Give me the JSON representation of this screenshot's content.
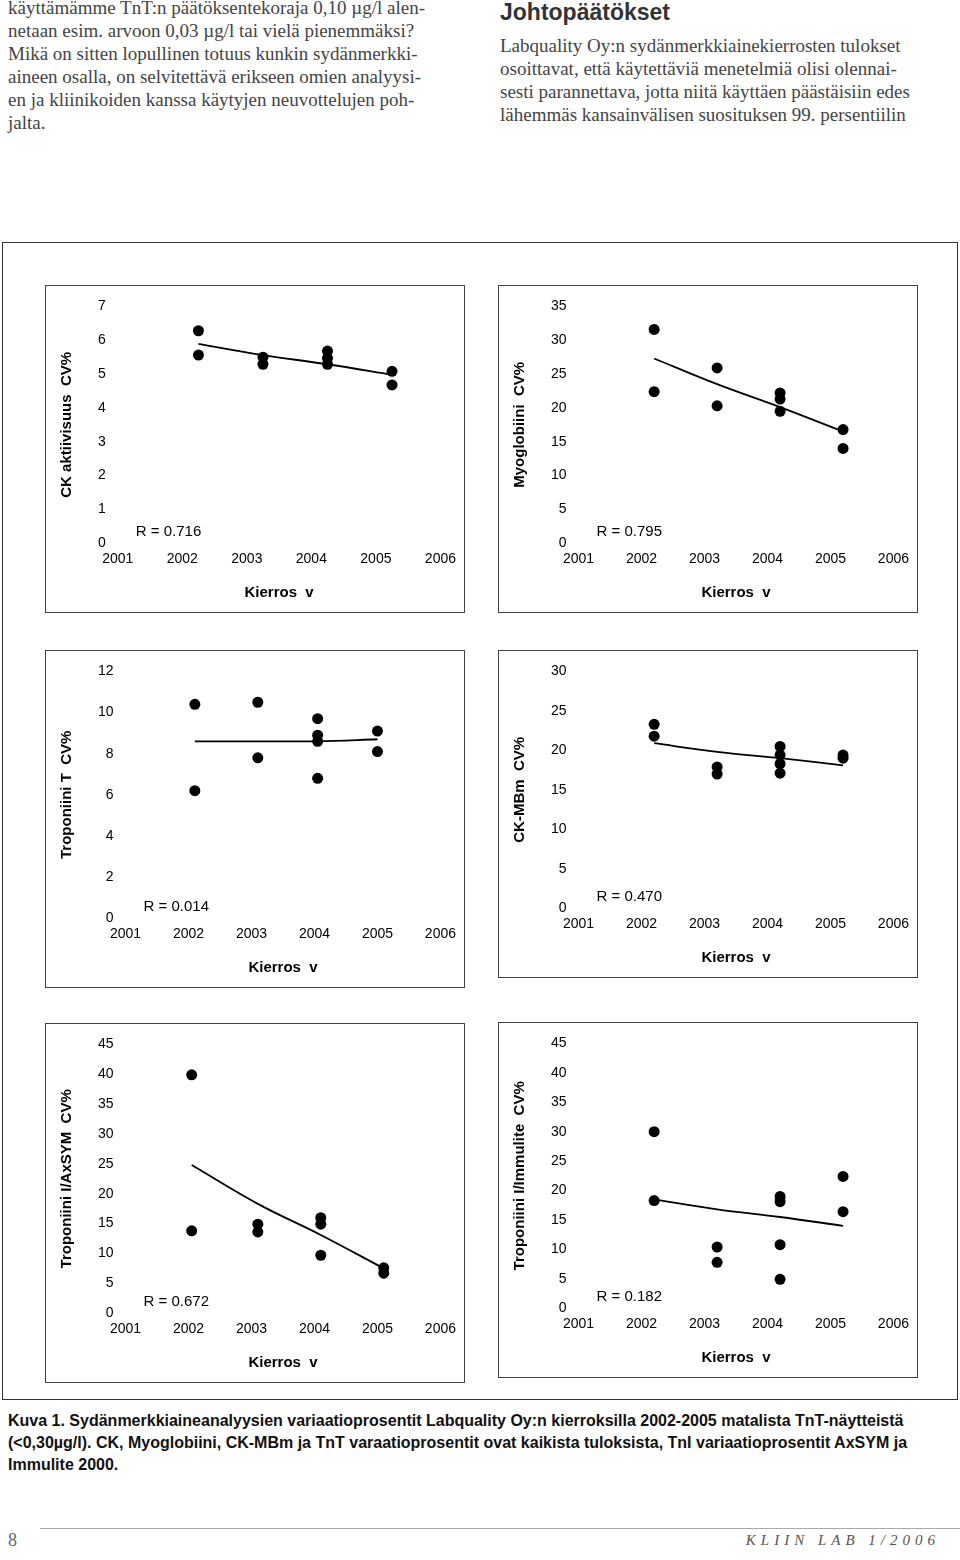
{
  "document": {
    "left_column": [
      "käyttämämme TnT:n päätöksentekoraja 0,10 µg/l alen-",
      "netaan esim. arvoon 0,03 µg/l tai vielä pienemmäksi?",
      "Mikä on sitten lopullinen totuus kunkin sydänmerkki-",
      "aineen osalla, on selvitettävä erikseen omien analyysi-",
      "en ja kliinikoiden kanssa käytyjen neuvottelujen poh-",
      "jalta."
    ],
    "right_column": {
      "heading": "Johtopäätökset",
      "lines": [
        "Labquality Oy:n sydänmerkkiainekierrosten tulokset",
        "osoittavat, että käytettäviä menetelmiä olisi olennai-",
        "sesti parannettava, jotta niitä käyttäen päästäisiin edes",
        "lähemmäs kansainvälisen suosituksen 99. persentiilin"
      ]
    },
    "caption": "Kuva 1. Sydänmerkkiaineanalyysien variaatioprosentit Labquality Oy:n kierroksilla 2002-2005 matalista TnT-näytteistä (<0,30µg/l). CK, Myoglobiini, CK-MBm ja TnT varaatioprosentit ovat kaikista tuloksista, TnI variaatioprosentit AxSYM ja Immulite 2000.",
    "page_number": "8",
    "journal": "KLIIN LAB 1/2006"
  },
  "chart_data": [
    {
      "type": "scatter",
      "y_label": "CK aktiivisuus  CV%",
      "x_label": "Kierros  v",
      "annotation": "R = 0.716",
      "xlim": [
        2001,
        2006
      ],
      "xticks": [
        2001,
        2002,
        2003,
        2004,
        2005,
        2006
      ],
      "ylim": [
        0,
        7
      ],
      "yticks": [
        0,
        1,
        2,
        3,
        4,
        5,
        6,
        7
      ],
      "grid": false,
      "series": [
        {
          "type": "scatter",
          "color": "#000000",
          "marker": "circle",
          "x": [
            2002.25,
            2002.25,
            2003.25,
            2003.25,
            2004.25,
            2004.25,
            2004.25,
            2005.25,
            2005.25
          ],
          "values": [
            6.28,
            5.56,
            5.5,
            5.29,
            5.68,
            5.47,
            5.29,
            5.08,
            4.68
          ]
        },
        {
          "type": "line",
          "color": "#000000",
          "marker": "none",
          "line_style": "solid",
          "x": [
            2002.25,
            2003.25,
            2004.25,
            2005.25
          ],
          "values": [
            5.89,
            5.56,
            5.29,
            4.98
          ]
        }
      ]
    },
    {
      "type": "scatter",
      "y_label": "Myoglobiini  CV%",
      "x_label": "Kierros  v",
      "annotation": "R = 0.795",
      "xlim": [
        2001,
        2006
      ],
      "xticks": [
        2001,
        2002,
        2003,
        2004,
        2005,
        2006
      ],
      "ylim": [
        0,
        35
      ],
      "yticks": [
        0,
        5,
        10,
        15,
        20,
        25,
        30,
        35
      ],
      "grid": false,
      "series": [
        {
          "type": "scatter",
          "color": "#000000",
          "marker": "circle",
          "x": [
            2002.2,
            2002.2,
            2003.2,
            2003.2,
            2004.2,
            2004.2,
            2004.2,
            2005.2,
            2005.2
          ],
          "values": [
            31.6,
            22.4,
            25.9,
            20.3,
            22.2,
            21.3,
            19.5,
            16.8,
            14.0
          ]
        },
        {
          "type": "line",
          "color": "#000000",
          "marker": "none",
          "line_style": "solid",
          "x": [
            2002.2,
            2003.2,
            2004.2,
            2005.2
          ],
          "values": [
            27.3,
            23.5,
            20.1,
            16.5
          ]
        }
      ]
    },
    {
      "type": "scatter",
      "y_label": "Troponiini T  CV%",
      "x_label": "Kierros  v",
      "annotation": "R = 0.014",
      "xlim": [
        2001,
        2006
      ],
      "xticks": [
        2001,
        2002,
        2003,
        2004,
        2005,
        2006
      ],
      "ylim": [
        0,
        12
      ],
      "yticks": [
        0,
        2,
        4,
        6,
        8,
        10,
        12
      ],
      "grid": false,
      "series": [
        {
          "type": "scatter",
          "color": "#000000",
          "marker": "circle",
          "x": [
            2002.1,
            2002.1,
            2003.1,
            2003.1,
            2004.05,
            2004.05,
            2004.05,
            2004.05,
            2005.0,
            2005.0
          ],
          "values": [
            10.4,
            6.2,
            10.5,
            7.8,
            9.7,
            8.9,
            8.6,
            6.8,
            9.1,
            8.1
          ]
        },
        {
          "type": "line",
          "color": "#000000",
          "marker": "none",
          "line_style": "solid",
          "x": [
            2002.1,
            2003.1,
            2004.05,
            2005.0
          ],
          "values": [
            8.6,
            8.6,
            8.6,
            8.7
          ]
        }
      ]
    },
    {
      "type": "scatter",
      "y_label": "CK-MBm  CV%",
      "x_label": "Kierros  v",
      "annotation": "R = 0.470",
      "xlim": [
        2001,
        2006
      ],
      "xticks": [
        2001,
        2002,
        2003,
        2004,
        2005,
        2006
      ],
      "ylim": [
        0,
        30
      ],
      "yticks": [
        0,
        5,
        10,
        15,
        20,
        25,
        30
      ],
      "grid": false,
      "series": [
        {
          "type": "scatter",
          "color": "#000000",
          "marker": "circle",
          "x": [
            2002.2,
            2002.2,
            2003.2,
            2003.2,
            2004.2,
            2004.2,
            2004.2,
            2004.2,
            2005.2,
            2005.2
          ],
          "values": [
            23.3,
            21.8,
            17.9,
            17.0,
            20.5,
            19.4,
            18.3,
            17.1,
            19.4,
            19.0
          ]
        },
        {
          "type": "line",
          "color": "#000000",
          "marker": "none",
          "line_style": "solid",
          "x": [
            2002.2,
            2003.2,
            2004.2,
            2005.2
          ],
          "values": [
            20.9,
            19.8,
            19.0,
            18.1
          ]
        }
      ]
    },
    {
      "type": "scatter",
      "y_label": "Troponiini I/AxSYM  CV%",
      "x_label": "Kierros  v",
      "annotation": "R = 0.672",
      "xlim": [
        2001,
        2006
      ],
      "xticks": [
        2001,
        2002,
        2003,
        2004,
        2005,
        2006
      ],
      "ylim": [
        0,
        45
      ],
      "yticks": [
        0,
        5,
        10,
        15,
        20,
        25,
        30,
        35,
        40,
        45
      ],
      "grid": false,
      "series": [
        {
          "type": "scatter",
          "color": "#000000",
          "marker": "circle",
          "x": [
            2002.05,
            2002.05,
            2003.1,
            2003.1,
            2004.1,
            2004.1,
            2004.1,
            2005.1,
            2005.1
          ],
          "values": [
            39.9,
            13.8,
            14.9,
            13.6,
            16.0,
            14.9,
            9.7,
            7.6,
            6.7
          ]
        },
        {
          "type": "line",
          "color": "#000000",
          "marker": "none",
          "line_style": "solid",
          "x": [
            2002.05,
            2003.1,
            2004.1,
            2005.1
          ],
          "values": [
            24.8,
            18.3,
            13.1,
            7.5
          ]
        }
      ]
    },
    {
      "type": "scatter",
      "y_label": "Troponiini I/Immulite  CV%",
      "x_label": "Kierros  v",
      "annotation": "R = 0.182",
      "xlim": [
        2001,
        2006
      ],
      "xticks": [
        2001,
        2002,
        2003,
        2004,
        2005,
        2006
      ],
      "ylim": [
        0,
        45
      ],
      "yticks": [
        0,
        5,
        10,
        15,
        20,
        25,
        30,
        35,
        40,
        45
      ],
      "grid": false,
      "series": [
        {
          "type": "scatter",
          "color": "#000000",
          "marker": "circle",
          "x": [
            2002.2,
            2002.2,
            2003.2,
            2003.2,
            2004.2,
            2004.2,
            2004.2,
            2004.2,
            2005.2,
            2005.2
          ],
          "values": [
            30.0,
            18.3,
            10.4,
            7.8,
            19.0,
            18.1,
            10.8,
            4.9,
            22.4,
            16.4
          ]
        },
        {
          "type": "line",
          "color": "#000000",
          "marker": "none",
          "line_style": "solid",
          "x": [
            2002.2,
            2003.2,
            2004.2,
            2005.2
          ],
          "values": [
            18.5,
            16.8,
            15.5,
            14.0
          ]
        }
      ]
    }
  ]
}
